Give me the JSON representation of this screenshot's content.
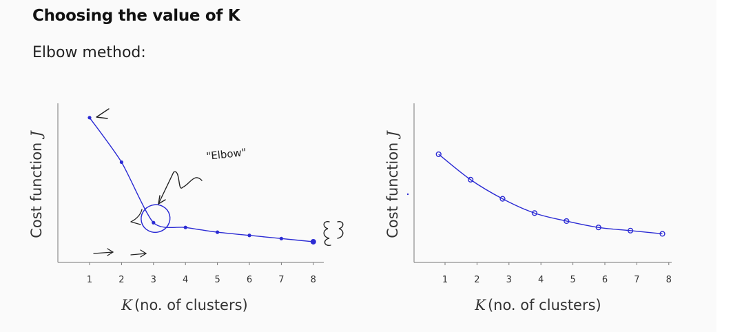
{
  "page": {
    "title": "Choosing the value of K",
    "subtitle": "Elbow method:"
  },
  "colors": {
    "ink": "#2b2bd4",
    "axis": "#777777",
    "text": "#333333"
  },
  "chart_data": [
    {
      "type": "line",
      "xlabel_symbol": "K",
      "xlabel": "(no. of clusters)",
      "ylabel": "Cost function",
      "ylabel_symbol": "J",
      "x": [
        1,
        2,
        3,
        4,
        5,
        6,
        7,
        8
      ],
      "xlim": [
        0.2,
        8.2
      ],
      "ylim": [
        0,
        10
      ],
      "values": [
        9.1,
        6.3,
        2.5,
        2.2,
        1.9,
        1.7,
        1.5,
        1.3
      ],
      "annotation": "\"Elbow\"",
      "grid": false,
      "legend": "none"
    },
    {
      "type": "line",
      "xlabel_symbol": "K",
      "xlabel": "(no. of clusters)",
      "ylabel": "Cost function",
      "ylabel_symbol": "J",
      "x": [
        0.8,
        1.8,
        2.8,
        3.8,
        4.8,
        5.8,
        6.8,
        7.8
      ],
      "xlim": [
        0.0,
        8.2
      ],
      "ylim": [
        0,
        10
      ],
      "values": [
        6.8,
        5.2,
        4.0,
        3.1,
        2.6,
        2.2,
        2.0,
        1.8
      ],
      "grid": false,
      "legend": "none"
    }
  ]
}
